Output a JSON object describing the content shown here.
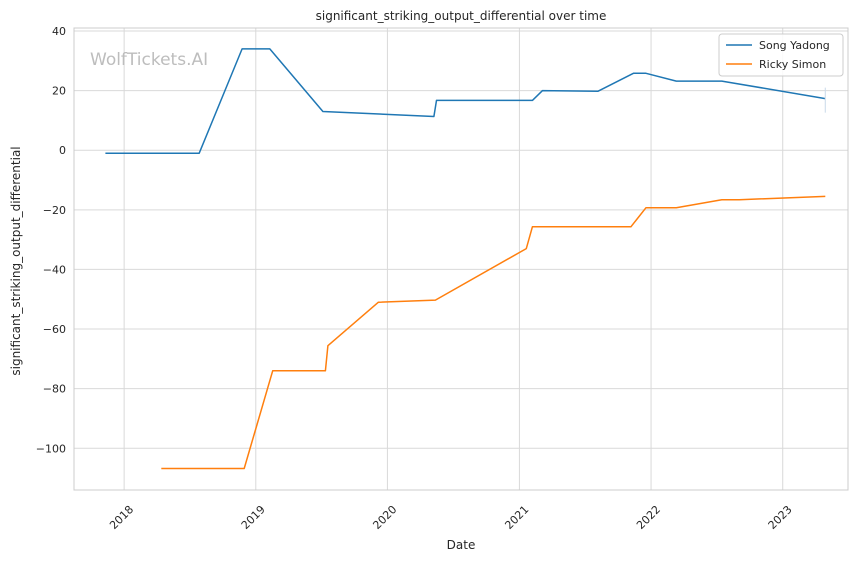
{
  "chart_data": {
    "type": "line",
    "title": "significant_striking_output_differential over time",
    "xlabel": "Date",
    "ylabel": "significant_striking_output_differential",
    "watermark": "WolfTickets.AI",
    "x_ticks": [
      "2018",
      "2019",
      "2020",
      "2021",
      "2022",
      "2023"
    ],
    "y_ticks": [
      40,
      20,
      0,
      -20,
      -40,
      -60,
      -80,
      -100
    ],
    "y_tick_labels": [
      "40",
      "20",
      "0",
      "−20",
      "−40",
      "−60",
      "−80",
      "−100"
    ],
    "xlim": [
      "2017-08-15",
      "2023-07-01"
    ],
    "ylim": [
      -114,
      41
    ],
    "grid": true,
    "legend_position": "top-right",
    "series": [
      {
        "name": "Song Yadong",
        "color": "#1f77b4",
        "points": [
          {
            "x": "2017-11-10",
            "y": -1
          },
          {
            "x": "2018-07-28",
            "y": -1
          },
          {
            "x": "2018-11-24",
            "y": 34
          },
          {
            "x": "2019-02-09",
            "y": 34
          },
          {
            "x": "2019-07-06",
            "y": 13
          },
          {
            "x": "2020-05-09",
            "y": 11.3
          },
          {
            "x": "2020-05-16",
            "y": 16.7
          },
          {
            "x": "2021-02-06",
            "y": 16.7
          },
          {
            "x": "2021-03-06",
            "y": 20
          },
          {
            "x": "2021-08-07",
            "y": 19.8
          },
          {
            "x": "2021-11-13",
            "y": 25.8
          },
          {
            "x": "2021-12-18",
            "y": 25.8
          },
          {
            "x": "2022-03-12",
            "y": 23.2
          },
          {
            "x": "2022-07-16",
            "y": 23.2
          },
          {
            "x": "2023-04-29",
            "y": 17.3
          }
        ]
      },
      {
        "name": "Ricky Simon",
        "color": "#ff7f0e",
        "points": [
          {
            "x": "2018-04-14",
            "y": -106.8
          },
          {
            "x": "2018-11-30",
            "y": -106.8
          },
          {
            "x": "2019-02-17",
            "y": -74
          },
          {
            "x": "2019-07-13",
            "y": -74
          },
          {
            "x": "2019-07-20",
            "y": -65.6
          },
          {
            "x": "2019-12-07",
            "y": -51
          },
          {
            "x": "2020-05-13",
            "y": -50.3
          },
          {
            "x": "2021-01-20",
            "y": -33
          },
          {
            "x": "2021-02-06",
            "y": -25.7
          },
          {
            "x": "2021-11-06",
            "y": -25.7
          },
          {
            "x": "2021-12-18",
            "y": -19.3
          },
          {
            "x": "2022-03-12",
            "y": -19.3
          },
          {
            "x": "2022-07-16",
            "y": -16.6
          },
          {
            "x": "2022-09-03",
            "y": -16.6
          },
          {
            "x": "2023-04-29",
            "y": -15.5
          }
        ]
      }
    ]
  }
}
